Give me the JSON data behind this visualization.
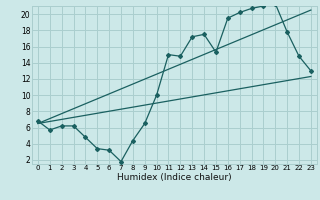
{
  "title": "",
  "xlabel": "Humidex (Indice chaleur)",
  "bg_color": "#cce8e8",
  "grid_color": "#aacece",
  "line_color": "#1a6060",
  "xlim": [
    -0.5,
    23.5
  ],
  "ylim": [
    1.5,
    21.0
  ],
  "xticks": [
    0,
    1,
    2,
    3,
    4,
    5,
    6,
    7,
    8,
    9,
    10,
    11,
    12,
    13,
    14,
    15,
    16,
    17,
    18,
    19,
    20,
    21,
    22,
    23
  ],
  "yticks": [
    2,
    4,
    6,
    8,
    10,
    12,
    14,
    16,
    18,
    20
  ],
  "line1_x": [
    0,
    1,
    2,
    3,
    4,
    5,
    6,
    7,
    8,
    9,
    10,
    11,
    12,
    13,
    14,
    15,
    16,
    17,
    18,
    19,
    20,
    21,
    22,
    23
  ],
  "line1_y": [
    6.8,
    5.7,
    6.2,
    6.2,
    4.8,
    3.4,
    3.2,
    1.8,
    4.4,
    6.5,
    10.0,
    15.0,
    14.8,
    17.2,
    17.5,
    15.3,
    19.5,
    20.2,
    20.7,
    21.0,
    21.3,
    17.8,
    14.8,
    13.0
  ],
  "line2_x": [
    0,
    23
  ],
  "line2_y": [
    6.5,
    12.3
  ],
  "line3_x": [
    0,
    23
  ],
  "line3_y": [
    6.5,
    20.5
  ],
  "xlabel_fontsize": 6.5,
  "tick_fontsize_x": 5.0,
  "tick_fontsize_y": 5.5
}
